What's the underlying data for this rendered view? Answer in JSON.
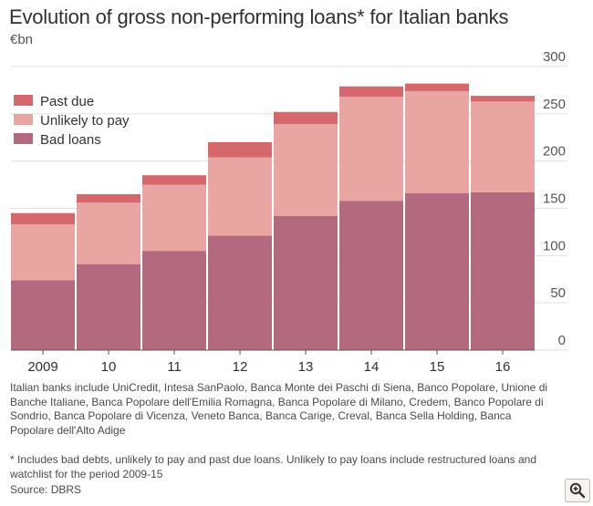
{
  "title": "Evolution of gross non-performing loans* for Italian banks",
  "subtitle": "€bn",
  "notes": "Italian banks include UniCredit, Intesa SanPaolo, Banca Monte dei Paschi di Siena, Banco Popolare, Unione di Banche Italiane, Banca Popolare dell'Emilia Romagna, Banca Popolare di Milano, Credem, Banco Popolare di Sondrio, Banca Popolare di Vicenza, Veneto Banca, Banca Carige, Creval, Banca Sella Holding, Banca Popolare dell'Alto Adige",
  "footnote": "* Includes bad debts, unlikely to pay and past due loans. Unlikely to pay loans include restructured loans and watchlist for the period 2009-15",
  "source": "Source: DBRS",
  "zoom_icon": "zoom-in-icon",
  "colors": {
    "past_due": "#d6676b",
    "unlikely_to_pay": "#e9a5a2",
    "bad_loans": "#b36a7e",
    "grid": "#e3dfdc",
    "tick_text": "#5a5450"
  },
  "chart_data": {
    "type": "bar",
    "stacked": true,
    "categories": [
      "2009",
      "10",
      "11",
      "12",
      "13",
      "14",
      "15",
      "16"
    ],
    "series": [
      {
        "name": "Bad loans",
        "values": [
          74,
          91,
          105,
          121,
          142,
          158,
          166,
          167
        ],
        "color": "#b36a7e"
      },
      {
        "name": "Unlikely to pay",
        "values": [
          59,
          65,
          70,
          83,
          97,
          110,
          108,
          96
        ],
        "color": "#e9a5a2"
      },
      {
        "name": "Past due",
        "values": [
          12,
          9,
          10,
          16,
          13,
          11,
          8,
          6
        ],
        "color": "#d6676b"
      }
    ],
    "legend_order": [
      "Past due",
      "Unlikely to pay",
      "Bad loans"
    ],
    "legend_position": "top-left",
    "ylim": [
      0,
      300
    ],
    "yticks": [
      0,
      50,
      100,
      150,
      200,
      250,
      300
    ],
    "y_axis_side": "right",
    "grid": true
  }
}
